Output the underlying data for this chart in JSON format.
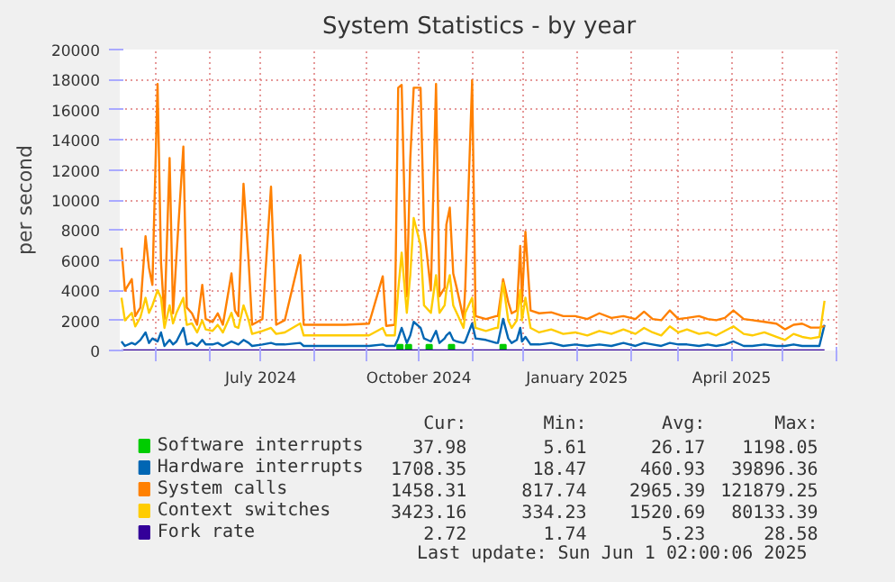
{
  "chart_data": {
    "type": "line",
    "title": "System Statistics - by year",
    "ylabel": "per second",
    "x": [
      "2024-04-11",
      "2024-04-13",
      "2024-04-17",
      "2024-04-19",
      "2024-04-22",
      "2024-04-25",
      "2024-04-27",
      "2024-04-29",
      "2024-05-02",
      "2024-05-04",
      "2024-05-06",
      "2024-05-09",
      "2024-05-11",
      "2024-05-13",
      "2024-05-17",
      "2024-05-19",
      "2024-05-22",
      "2024-05-25",
      "2024-05-28",
      "2024-05-30",
      "2024-06-03",
      "2024-06-06",
      "2024-06-09",
      "2024-06-14",
      "2024-06-16",
      "2024-06-18",
      "2024-06-21",
      "2024-06-24",
      "2024-06-26",
      "2024-07-02",
      "2024-07-07",
      "2024-07-10",
      "2024-07-15",
      "2024-07-24",
      "2024-07-26",
      "2024-08-05",
      "2024-08-19",
      "2024-09-02",
      "2024-09-10",
      "2024-09-12",
      "2024-09-17",
      "2024-09-19",
      "2024-09-21",
      "2024-09-24",
      "2024-09-26",
      "2024-09-28",
      "2024-10-02",
      "2024-10-04",
      "2024-10-08",
      "2024-10-11",
      "2024-10-13",
      "2024-10-16",
      "2024-10-17",
      "2024-10-19",
      "2024-10-21",
      "2024-10-23",
      "2024-10-27",
      "2024-10-28",
      "2024-11-01",
      "2024-11-03",
      "2024-11-09",
      "2024-11-15",
      "2024-11-16",
      "2024-11-19",
      "2024-11-22",
      "2024-11-24",
      "2024-11-27",
      "2024-11-29",
      "2024-11-30",
      "2024-12-02",
      "2024-12-05",
      "2024-12-10",
      "2024-12-17",
      "2024-12-24",
      "2024-12-31",
      "2025-01-07",
      "2025-01-14",
      "2025-01-21",
      "2025-01-28",
      "2025-02-04",
      "2025-02-09",
      "2025-02-14",
      "2025-02-19",
      "2025-02-24",
      "2025-03-01",
      "2025-03-06",
      "2025-03-13",
      "2025-03-18",
      "2025-03-23",
      "2025-03-28",
      "2025-04-02",
      "2025-04-08",
      "2025-04-13",
      "2025-04-20",
      "2025-04-27",
      "2025-05-02",
      "2025-05-07",
      "2025-05-12",
      "2025-05-17",
      "2025-05-22",
      "2025-05-25"
    ],
    "series": [
      {
        "name": "Software interrupts",
        "color": "#00cc00",
        "type": "scatter",
        "marker": "square",
        "x": [
          "2024-09-20",
          "2024-09-25",
          "2024-10-07",
          "2024-10-20",
          "2024-11-19"
        ],
        "values": [
          200,
          200,
          200,
          200,
          200
        ]
      },
      {
        "name": "Hardware interrupts",
        "color": "#0066b3",
        "values": [
          600,
          300,
          500,
          400,
          700,
          1200,
          500,
          800,
          600,
          1200,
          300,
          700,
          400,
          600,
          1500,
          400,
          500,
          300,
          700,
          400,
          400,
          500,
          300,
          600,
          500,
          400,
          700,
          500,
          300,
          400,
          500,
          400,
          400,
          500,
          300,
          300,
          300,
          300,
          400,
          300,
          300,
          800,
          1500,
          500,
          1000,
          1900,
          1500,
          800,
          600,
          1300,
          500,
          800,
          1000,
          1200,
          700,
          600,
          500,
          600,
          1800,
          800,
          700,
          500,
          500,
          2100,
          800,
          500,
          700,
          1500,
          600,
          900,
          400,
          400,
          500,
          300,
          400,
          300,
          400,
          300,
          500,
          300,
          500,
          400,
          300,
          500,
          400,
          400,
          300,
          400,
          300,
          400,
          600,
          300,
          300,
          400,
          300,
          300,
          400,
          300,
          300,
          300,
          1700
        ]
      },
      {
        "name": "System calls",
        "color": "#ff8000",
        "values": [
          6830,
          3980,
          4740,
          2280,
          2850,
          7590,
          5500,
          4360,
          17720,
          5880,
          2090,
          12790,
          2470,
          6260,
          13550,
          2850,
          2470,
          1710,
          4360,
          2090,
          1900,
          2470,
          1710,
          5120,
          2660,
          2280,
          11080,
          5880,
          1710,
          2090,
          10890,
          1710,
          2010,
          6340,
          1710,
          1710,
          1710,
          1780,
          4930,
          1630,
          1710,
          17460,
          17650,
          3600,
          12710,
          17460,
          17460,
          8160,
          3980,
          17720,
          3600,
          4170,
          8350,
          9490,
          5120,
          4170,
          2090,
          4170,
          17950,
          2280,
          2090,
          2280,
          2280,
          4740,
          3220,
          2470,
          2660,
          6950,
          3220,
          7890,
          2660,
          2470,
          2540,
          2280,
          2280,
          2090,
          2470,
          2160,
          2280,
          2090,
          2580,
          2090,
          2010,
          2660,
          2090,
          2160,
          2280,
          2090,
          2010,
          2160,
          2660,
          2090,
          2010,
          1900,
          1780,
          1400,
          1710,
          1780,
          1520,
          1520,
          1630
        ]
      },
      {
        "name": "Context switches",
        "color": "#ffcc00",
        "values": [
          3500,
          2000,
          2500,
          1600,
          2200,
          3500,
          2500,
          3000,
          4000,
          3500,
          1500,
          3000,
          1800,
          2500,
          3500,
          1700,
          1800,
          1200,
          2000,
          1400,
          1300,
          1700,
          1200,
          2500,
          1600,
          1500,
          3000,
          2000,
          1100,
          1300,
          1500,
          1100,
          1200,
          1800,
          1000,
          1000,
          1000,
          1000,
          1500,
          1000,
          1000,
          4000,
          6500,
          2500,
          5000,
          8800,
          7000,
          3000,
          2500,
          5000,
          2500,
          3000,
          4000,
          5000,
          3000,
          2500,
          1500,
          2500,
          3500,
          1500,
          1300,
          1500,
          1500,
          4500,
          2000,
          1500,
          2000,
          4000,
          2000,
          3500,
          1500,
          1200,
          1400,
          1100,
          1200,
          1000,
          1300,
          1100,
          1400,
          1100,
          1500,
          1200,
          1000,
          1600,
          1200,
          1400,
          1100,
          1200,
          1000,
          1300,
          1600,
          1100,
          1000,
          1200,
          900,
          700,
          1100,
          900,
          800,
          900,
          3300
        ]
      },
      {
        "name": "Fork rate",
        "color": "#330099",
        "x": [
          "2024-04-11",
          "2025-05-25"
        ],
        "values": [
          5,
          5
        ]
      }
    ],
    "xlim": [
      "2024-04-10",
      "2025-06-02"
    ],
    "xticks": [
      {
        "value": "2024-05-01",
        "label": null
      },
      {
        "value": "2024-06-01",
        "label": null
      },
      {
        "value": "2024-07-01",
        "label": "July 2024"
      },
      {
        "value": "2024-08-01",
        "label": null
      },
      {
        "value": "2024-09-01",
        "label": null
      },
      {
        "value": "2024-10-01",
        "label": "October 2024"
      },
      {
        "value": "2024-11-01",
        "label": null
      },
      {
        "value": "2024-12-01",
        "label": null
      },
      {
        "value": "2025-01-01",
        "label": "January 2025"
      },
      {
        "value": "2025-02-01",
        "label": null
      },
      {
        "value": "2025-03-01",
        "label": null
      },
      {
        "value": "2025-04-01",
        "label": "April 2025"
      },
      {
        "value": "2025-05-01",
        "label": null
      },
      {
        "value": "2025-06-01",
        "label": null
      }
    ],
    "ylim": [
      0,
      20000
    ],
    "yticks": [
      0,
      2000,
      4000,
      6000,
      8000,
      10000,
      12000,
      14000,
      16000,
      18000,
      20000
    ],
    "grid": true,
    "legend": "bottom",
    "annotations": [
      "Cur:",
      "Min:",
      "Avg:",
      "Max:",
      "37.98",
      "5.61",
      "26.17",
      "1198.05",
      "1708.35",
      "18.47",
      "460.93",
      "39896.36",
      "1458.31",
      "817.74",
      "2965.39",
      "121879.25",
      "3423.16",
      "334.23",
      "1520.69",
      "80133.39",
      "2.72",
      "1.74",
      "5.23",
      "28.58",
      "Last update: Sun Jun  1 02:00:06 2025"
    ]
  }
}
